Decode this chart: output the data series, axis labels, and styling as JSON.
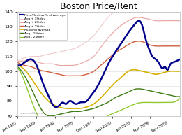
{
  "title": "Boston Price/Rent",
  "title_fontsize": 9,
  "xlim_start": 1987.0,
  "xlim_end": 2010.5,
  "ylim": [
    70,
    140
  ],
  "yticks": [
    70,
    80,
    90,
    100,
    110,
    120,
    130,
    140
  ],
  "xtick_labels": [
    "Jan 1987",
    "Sep 1989",
    "Jun 1992",
    "Mar 1995",
    "Dec 1997",
    "Sep 2000",
    "Jun 2003",
    "Mar 2006",
    "Nov 2008"
  ],
  "xtick_positions": [
    1987.0,
    1989.67,
    1992.42,
    1995.17,
    1997.92,
    2000.67,
    2003.42,
    2006.17,
    2008.83
  ],
  "legend_labels": [
    "Price/Rent as % of Average",
    "Avg + 3Stdev",
    "Avg + 2Stdev",
    "Avg + 1Stdev",
    "Running Average",
    "Avg - 1Stdev",
    "Avg - 2Stdev"
  ],
  "line_colors": [
    "#00008B",
    "#f0c8c8",
    "#e8a0a0",
    "#d06040",
    "#d4b000",
    "#3a7a10",
    "#90c830"
  ],
  "line_widths": [
    1.8,
    0.8,
    0.8,
    1.0,
    1.2,
    1.0,
    1.0
  ],
  "background_color": "#ffffff",
  "grid_color": "#e0e0e0",
  "watermark": "bostonbubble.com"
}
